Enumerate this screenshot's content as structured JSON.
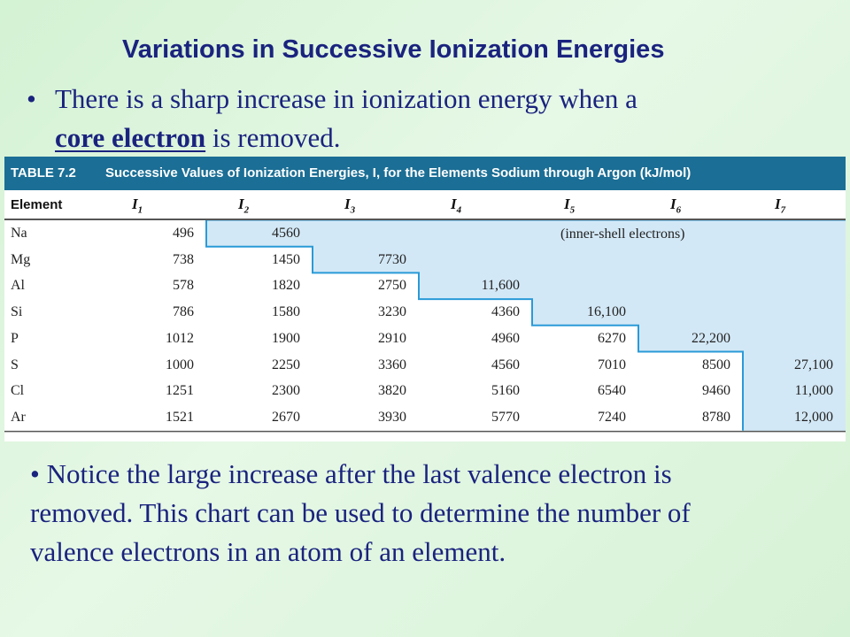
{
  "title": "Variations in Successive Ionization Energies",
  "bullet1": {
    "bullet": "•",
    "line1": "There is a sharp increase in ionization energy when a",
    "term": "core electron",
    "line2_rest": " is removed."
  },
  "table": {
    "tag": "TABLE 7.2",
    "caption": "Successive Values of Ionization Energies, I, for the Elements Sodium through Argon (kJ/mol)",
    "col_element": "Element",
    "col_symbol": "I",
    "col_subscripts": [
      "1",
      "2",
      "3",
      "4",
      "5",
      "6",
      "7"
    ],
    "note": "(inner-shell electrons)",
    "shade_color": "#d3e8f6",
    "line_color": "#2a9ad8",
    "rows": [
      {
        "el": "Na",
        "v": [
          "496",
          "4560",
          "",
          "",
          "",
          "",
          ""
        ]
      },
      {
        "el": "Mg",
        "v": [
          "738",
          "1450",
          "7730",
          "",
          "",
          "",
          ""
        ]
      },
      {
        "el": "Al",
        "v": [
          "578",
          "1820",
          "2750",
          "11,600",
          "",
          "",
          ""
        ]
      },
      {
        "el": "Si",
        "v": [
          "786",
          "1580",
          "3230",
          "4360",
          "16,100",
          "",
          ""
        ]
      },
      {
        "el": "P",
        "v": [
          "1012",
          "1900",
          "2910",
          "4960",
          "6270",
          "22,200",
          ""
        ]
      },
      {
        "el": "S",
        "v": [
          "1000",
          "2250",
          "3360",
          "4560",
          "7010",
          "8500",
          "27,100"
        ]
      },
      {
        "el": "Cl",
        "v": [
          "1251",
          "2300",
          "3820",
          "5160",
          "6540",
          "9460",
          "11,000"
        ]
      },
      {
        "el": "Ar",
        "v": [
          "1521",
          "2670",
          "3930",
          "5770",
          "7240",
          "8780",
          "12,000"
        ]
      }
    ],
    "core_start_index": [
      1,
      2,
      3,
      4,
      5,
      6,
      6,
      6
    ]
  },
  "bullet2": {
    "line1": "• Notice the large increase after the last valence electron is",
    "line2": "removed.  This chart can be used to determine the number of",
    "line3": "valence electrons in an atom of an element."
  }
}
